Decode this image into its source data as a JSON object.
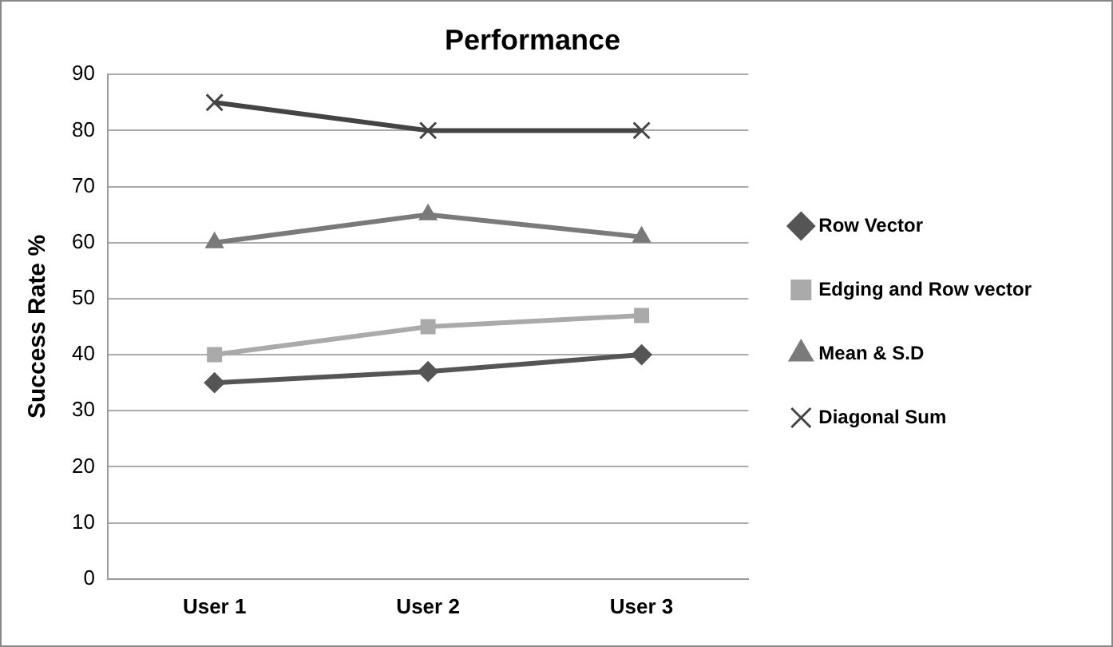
{
  "chart_data": {
    "type": "line",
    "title": "Performance",
    "ylabel": "Success Rate %",
    "categories": [
      "User 1",
      "User 2",
      "User 3"
    ],
    "series": [
      {
        "name": "Row Vector",
        "color": "#555555",
        "values": [
          35,
          37,
          40
        ],
        "marker": "diamond"
      },
      {
        "name": "Edging and Row vector",
        "color": "#aaaaaa",
        "values": [
          40,
          45,
          47
        ],
        "marker": "square"
      },
      {
        "name": "Mean & S.D",
        "color": "#7a7a7a",
        "values": [
          60,
          65,
          61
        ],
        "marker": "triangle"
      },
      {
        "name": "Diagonal Sum",
        "color": "#444444",
        "values": [
          85,
          80,
          80
        ],
        "marker": "cross"
      }
    ],
    "ylim": [
      0,
      90
    ],
    "yticks": [
      0,
      10,
      20,
      30,
      40,
      50,
      60,
      70,
      80,
      90
    ],
    "grid": "y",
    "legend": "right",
    "line_style": "solid"
  }
}
